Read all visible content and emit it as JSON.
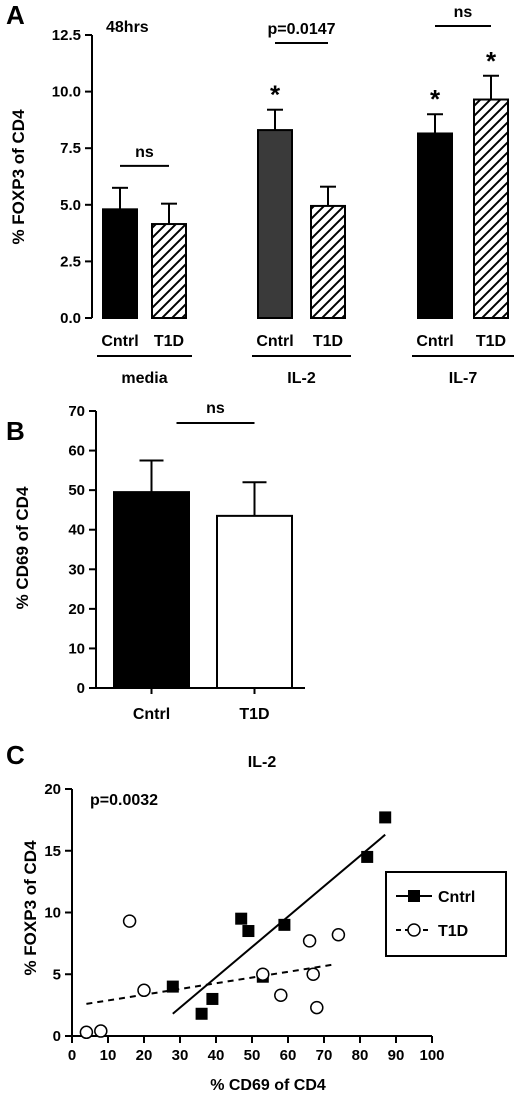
{
  "chart_data": [
    {
      "panel": "A",
      "type": "bar",
      "annotation": "48hrs",
      "ylabel": "% FOXP3 of CD4",
      "ylim": [
        0,
        12.5
      ],
      "yticks": [
        "0.0",
        "2.5",
        "5.0",
        "7.5",
        "10.0",
        "12.5"
      ],
      "groups": [
        {
          "label": "media",
          "bars": [
            {
              "name": "Cntrl",
              "value": 4.8,
              "error": 0.95,
              "fill": "#000000"
            },
            {
              "name": "T1D",
              "value": 4.15,
              "error": 0.9,
              "fill": "hatch"
            }
          ],
          "comparison": "ns",
          "stars": [
            "",
            ""
          ]
        },
        {
          "label": "IL-2",
          "bars": [
            {
              "name": "Cntrl",
              "value": 8.3,
              "error": 0.9,
              "fill": "#3a3a3a"
            },
            {
              "name": "T1D",
              "value": 4.95,
              "error": 0.85,
              "fill": "hatch"
            }
          ],
          "comparison": "p=0.0147",
          "stars": [
            "*",
            ""
          ]
        },
        {
          "label": "IL-7",
          "bars": [
            {
              "name": "Cntrl",
              "value": 8.15,
              "error": 0.85,
              "fill": "#000000"
            },
            {
              "name": "T1D",
              "value": 9.65,
              "error": 1.05,
              "fill": "hatch"
            }
          ],
          "comparison": "ns",
          "stars": [
            "*",
            "*"
          ]
        }
      ]
    },
    {
      "panel": "B",
      "type": "bar",
      "ylabel": "% CD69 of CD4",
      "ylim": [
        0,
        70
      ],
      "yticks": [
        "0",
        "10",
        "20",
        "30",
        "40",
        "50",
        "60",
        "70"
      ],
      "categories": [
        "Cntrl",
        "T1D"
      ],
      "values": [
        49.5,
        43.5
      ],
      "errors": [
        8,
        8.5
      ],
      "fills": [
        "#000000",
        "#ffffff"
      ],
      "comparison": "ns"
    },
    {
      "panel": "C",
      "type": "scatter",
      "title": "IL-2",
      "annotation": "p=0.0032",
      "xlabel": "% CD69 of CD4",
      "ylabel": "% FOXP3 of CD4",
      "xlim": [
        0,
        100
      ],
      "ylim": [
        0,
        20
      ],
      "xticks": [
        "0",
        "10",
        "20",
        "30",
        "40",
        "50",
        "60",
        "70",
        "80",
        "90",
        "100"
      ],
      "yticks": [
        "0",
        "5",
        "10",
        "15",
        "20"
      ],
      "legend_position": "right",
      "series": [
        {
          "name": "Cntrl",
          "marker": "filled-square",
          "line": "solid",
          "x": [
            28,
            36,
            39,
            47,
            49,
            53,
            59,
            82,
            87
          ],
          "y": [
            4.0,
            1.8,
            3.0,
            9.5,
            8.5,
            4.8,
            9.0,
            14.5,
            17.7
          ],
          "fit": [
            [
              28,
              1.8
            ],
            [
              87,
              16.3
            ]
          ]
        },
        {
          "name": "T1D",
          "marker": "open-circle",
          "line": "dashed",
          "x": [
            4,
            8,
            16,
            20,
            53,
            58,
            66,
            67,
            68,
            74
          ],
          "y": [
            0.3,
            0.4,
            9.3,
            3.7,
            5.0,
            3.3,
            7.7,
            5.0,
            2.3,
            8.2
          ],
          "fit": [
            [
              4,
              2.6
            ],
            [
              73,
              5.8
            ]
          ]
        }
      ]
    }
  ]
}
